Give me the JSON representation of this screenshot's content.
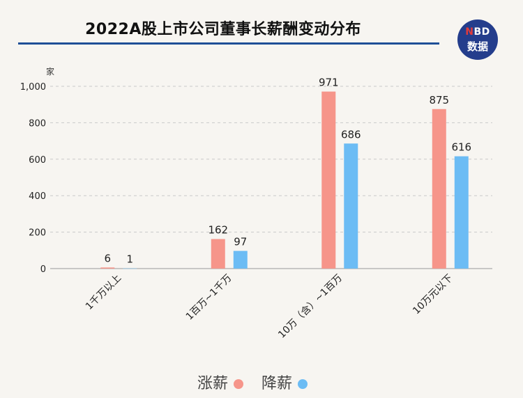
{
  "header": {
    "title": "2022A股上市公司董事长薪酬变动分布",
    "logo_top": "NBD",
    "logo_bottom": "数据"
  },
  "chart_data": {
    "type": "bar",
    "unit_label": "家",
    "categories": [
      "1千万以上",
      "1百万~1千万",
      "10万（含）~1百万",
      "10万元以下"
    ],
    "series": [
      {
        "name": "涨薪",
        "color": "#f6958a",
        "values": [
          6,
          162,
          971,
          875
        ]
      },
      {
        "name": "降薪",
        "color": "#6cbcf4",
        "values": [
          1,
          97,
          686,
          616
        ]
      }
    ],
    "ylim": [
      0,
      1000
    ],
    "yticks": [
      "0",
      "200",
      "400",
      "600",
      "800",
      "1,000"
    ],
    "ytick_values": [
      0,
      200,
      400,
      600,
      800,
      1000
    ],
    "grid": true,
    "legend_position": "bottom"
  }
}
